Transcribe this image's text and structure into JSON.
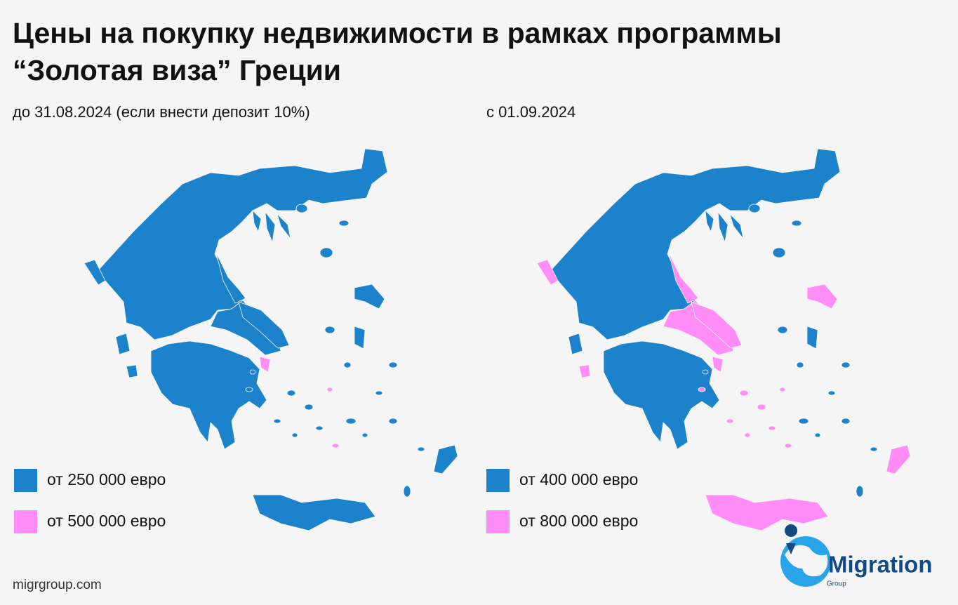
{
  "title_lines": [
    "Цены на покупку недвижимости в рамках программы",
    "“Золотая виза” Греции"
  ],
  "maps": [
    {
      "subtitle": "до 31.08.2024 (если внести депозит 10%)",
      "legend": [
        {
          "label": "от 250 000 евро",
          "color": "#1b82cb"
        },
        {
          "label": "от 500 000 евро",
          "color": "#ff8cf7"
        }
      ]
    },
    {
      "subtitle": "с 01.09.2024",
      "legend": [
        {
          "label": "от 400 000 евро",
          "color": "#1b82cb"
        },
        {
          "label": "от 800 000 евро",
          "color": "#ff8cf7"
        }
      ]
    }
  ],
  "footer": "migrgroup.com",
  "logo": {
    "name": "Migration",
    "sub": "Group"
  }
}
